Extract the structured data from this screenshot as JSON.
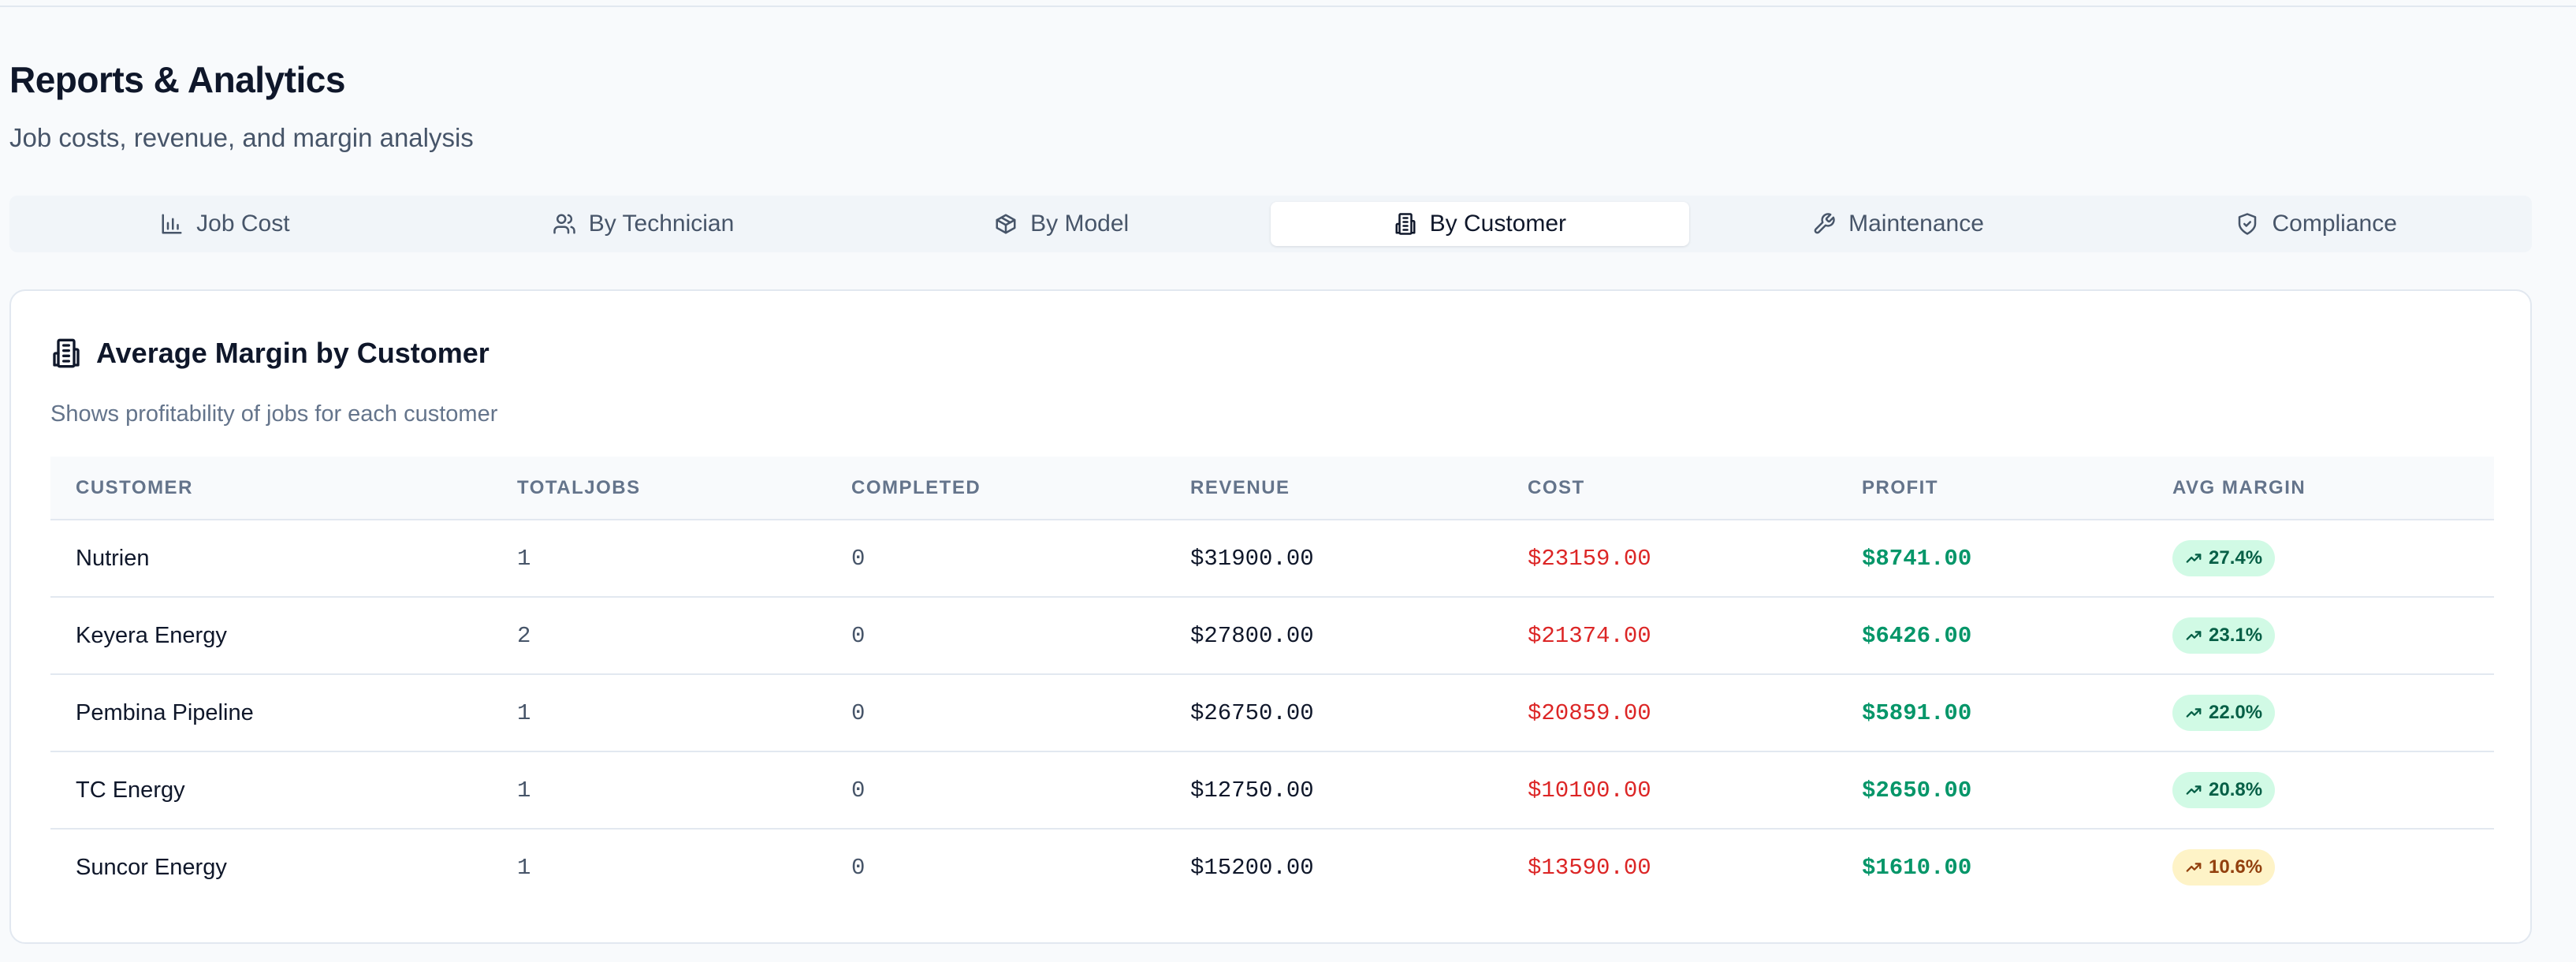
{
  "header": {
    "title": "Reports & Analytics",
    "subtitle": "Job costs, revenue, and margin analysis"
  },
  "tabs": [
    {
      "label": "Job Cost",
      "icon": "bar-chart-icon"
    },
    {
      "label": "By Technician",
      "icon": "users-icon"
    },
    {
      "label": "By Model",
      "icon": "box-icon"
    },
    {
      "label": "By Customer",
      "icon": "building-icon",
      "active": true
    },
    {
      "label": "Maintenance",
      "icon": "wrench-icon"
    },
    {
      "label": "Compliance",
      "icon": "shield-check-icon"
    }
  ],
  "card": {
    "icon": "building-icon",
    "title": "Average Margin by Customer",
    "description": "Shows profitability of jobs for each customer"
  },
  "table": {
    "columns": [
      "CUSTOMER",
      "TOTALJOBS",
      "COMPLETED",
      "REVENUE",
      "COST",
      "PROFIT",
      "AVG MARGIN"
    ],
    "rows": [
      {
        "customer": "Nutrien",
        "total_jobs": "1",
        "completed": "0",
        "revenue": "$31900.00",
        "cost": "$23159.00",
        "profit": "$8741.00",
        "margin": "27.4%",
        "margin_status": "good"
      },
      {
        "customer": "Keyera Energy",
        "total_jobs": "2",
        "completed": "0",
        "revenue": "$27800.00",
        "cost": "$21374.00",
        "profit": "$6426.00",
        "margin": "23.1%",
        "margin_status": "good"
      },
      {
        "customer": "Pembina Pipeline",
        "total_jobs": "1",
        "completed": "0",
        "revenue": "$26750.00",
        "cost": "$20859.00",
        "profit": "$5891.00",
        "margin": "22.0%",
        "margin_status": "good"
      },
      {
        "customer": "TC Energy",
        "total_jobs": "1",
        "completed": "0",
        "revenue": "$12750.00",
        "cost": "$10100.00",
        "profit": "$2650.00",
        "margin": "20.8%",
        "margin_status": "good"
      },
      {
        "customer": "Suncor Energy",
        "total_jobs": "1",
        "completed": "0",
        "revenue": "$15200.00",
        "cost": "$13590.00",
        "profit": "$1610.00",
        "margin": "10.6%",
        "margin_status": "warn"
      }
    ]
  },
  "colors": {
    "cost": "#dc2626",
    "profit": "#059669",
    "badge_good_bg": "#d1fae5",
    "badge_warn_bg": "#fef3c7"
  }
}
